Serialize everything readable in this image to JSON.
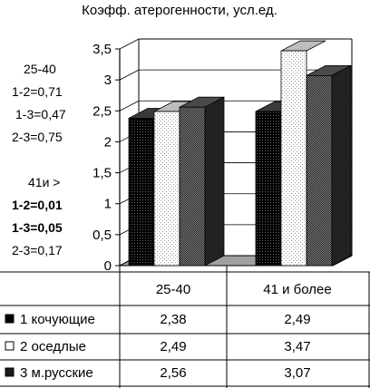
{
  "chart_data": {
    "type": "bar",
    "title": "Коэфф. атерогенности, усл.ед.",
    "categories": [
      "25-40",
      "41 и более"
    ],
    "series": [
      {
        "name": "1 кочующие",
        "values": [
          2.38,
          2.49
        ],
        "labels": [
          "2,38",
          "2,49"
        ],
        "pattern": "black"
      },
      {
        "name": "2 оседлые",
        "values": [
          2.49,
          3.47
        ],
        "labels": [
          "2,49",
          "3,47"
        ],
        "pattern": "white"
      },
      {
        "name": "3 м.русские",
        "values": [
          2.56,
          3.07
        ],
        "labels": [
          "2,56",
          "3,07"
        ],
        "pattern": "dark"
      }
    ],
    "ylim": [
      0,
      3.5
    ],
    "yticks": [
      "0",
      "0,5",
      "1",
      "1,5",
      "2",
      "2,5",
      "3",
      "3,5"
    ],
    "grid": true,
    "legend": "data-table"
  },
  "annotations": [
    {
      "text": "25-40",
      "bold": false
    },
    {
      "text": "1-2=0,71",
      "bold": false
    },
    {
      "text": "1-3=0,47",
      "bold": false
    },
    {
      "text": "2-3=0,75",
      "bold": false
    },
    {
      "text": "41и >",
      "bold": false
    },
    {
      "text": "1-2=0,01",
      "bold": true
    },
    {
      "text": "1-3=0,05",
      "bold": true
    },
    {
      "text": "2-3=0,17",
      "bold": false
    }
  ]
}
